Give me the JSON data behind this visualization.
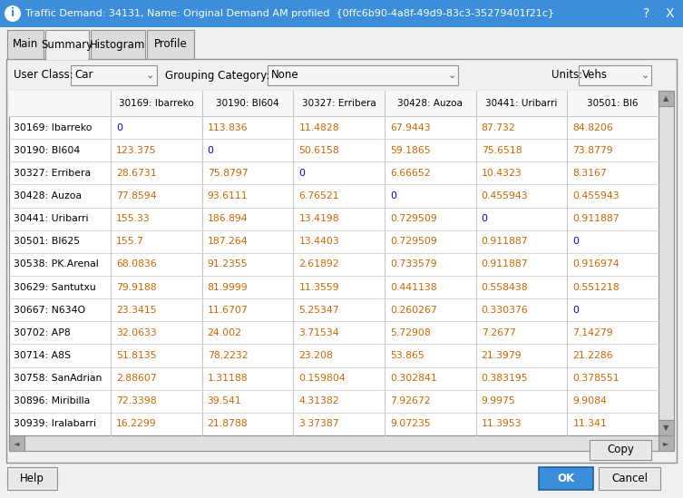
{
  "title": "Traffic Demand: 34131, Name: Original Demand AM profiled  {0ffc6b90-4a8f-49d9-83c3-35279401f21c}",
  "tabs": [
    "Main",
    "Summary",
    "Histogram",
    "Profile"
  ],
  "active_tab": "Summary",
  "user_class": "Car",
  "grouping_category": "None",
  "units": "Vehs",
  "col_headers": [
    "30169: Ibarreko",
    "30190: BI604",
    "30327: Erribera",
    "30428: Auzoa",
    "30441: Uribarri",
    "30501: BI6"
  ],
  "row_headers": [
    "30169: Ibarreko",
    "30190: BI604",
    "30327: Erribera",
    "30428: Auzoa",
    "30441: Uribarri",
    "30501: BI625",
    "30538: PK.Arenal",
    "30629: Santutxu",
    "30667: N634O",
    "30702: AP8",
    "30714: A8S",
    "30758: SanAdrian",
    "30896: Miribilla",
    "30939: Iralabarri"
  ],
  "table_data": [
    [
      "0",
      "113.836",
      "11.4828",
      "67.9443",
      "87.732",
      "84.8206"
    ],
    [
      "123.375",
      "0",
      "50.6158",
      "59.1865",
      "75.6518",
      "73.8779"
    ],
    [
      "28.6731",
      "75.8797",
      "0",
      "6.66652",
      "10.4323",
      "8.3167"
    ],
    [
      "77.8594",
      "93.6111",
      "6.76521",
      "0",
      "0.455943",
      "0.455943"
    ],
    [
      "155.33",
      "186.894",
      "13.4198",
      "0.729509",
      "0",
      "0.911887"
    ],
    [
      "155.7",
      "187.264",
      "13.4403",
      "0.729509",
      "0.911887",
      "0"
    ],
    [
      "68.0836",
      "91.2355",
      "2.61892",
      "0.733579",
      "0.911887",
      "0.916974"
    ],
    [
      "79.9188",
      "81.9999",
      "11.3559",
      "0.441138",
      "0.558438",
      "0.551218"
    ],
    [
      "23.3415",
      "11.6707",
      "5.25347",
      "0.260267",
      "0.330376",
      "0"
    ],
    [
      "32.0633",
      "24.002",
      "3.71534",
      "5.72908",
      "7.2677",
      "7.14279"
    ],
    [
      "51.8135",
      "78.2232",
      "23.208",
      "53.865",
      "21.3979",
      "21.2286"
    ],
    [
      "2.88607",
      "1.31188",
      "0.159804",
      "0.302841",
      "0.383195",
      "0.378551"
    ],
    [
      "72.3398",
      "39.541",
      "4.31382",
      "7.92672",
      "9.9975",
      "9.9084"
    ],
    [
      "16.2299",
      "21.8788",
      "3.37387",
      "9.07235",
      "11.3953",
      "11.341"
    ]
  ],
  "zero_color": "#0000cc",
  "value_color": "#cc6600",
  "dialog_bg": "#f0f0f0",
  "title_bar_bg": "#3c8edb",
  "title_bar_text": "#ffffff",
  "table_bg": "#ffffff",
  "grid_color": "#c8c8c8",
  "header_text_color": "#000000",
  "row_header_text_color": "#000000",
  "border_color": "#a0a0a0",
  "tab_active_bg": "#f0f0f0",
  "tab_inactive_bg": "#dcdcdc",
  "dropdown_bg": "#f5f5f5",
  "btn_ok_bg": "#3c8edb",
  "btn_ok_text": "#ffffff",
  "btn_normal_bg": "#e8e8e8",
  "scrollbar_track": "#e0e0e0",
  "scrollbar_thumb": "#b0b0b0"
}
